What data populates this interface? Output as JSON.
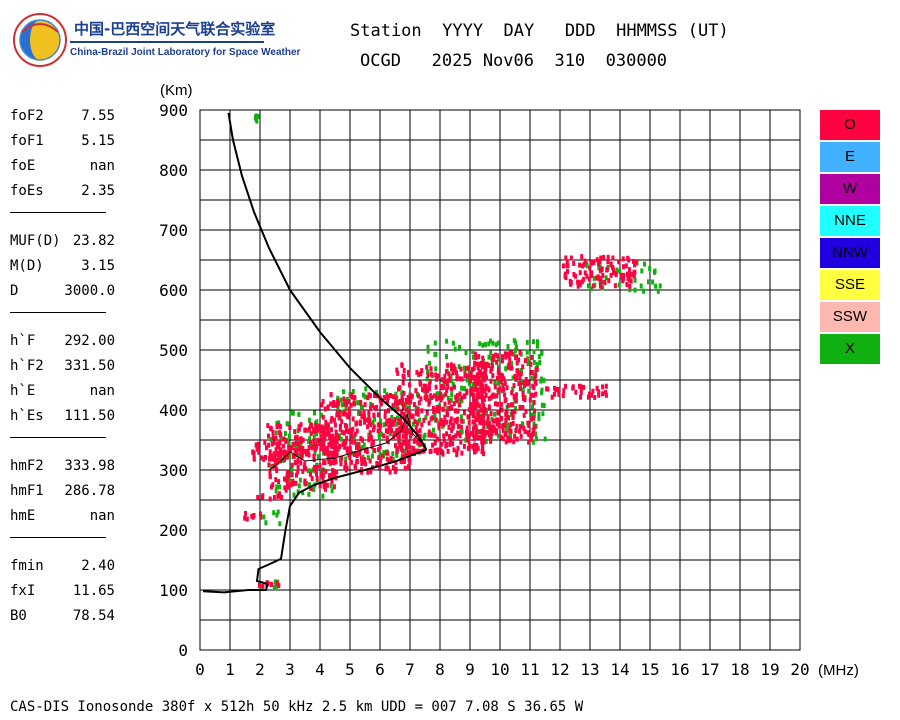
{
  "logo": {
    "title_cn": "中国-巴西空间天气联合实验室",
    "title_en": "China-Brazil Joint Laboratory for Space Weather",
    "icon": "globe-logo-icon"
  },
  "header": {
    "labels": "Station  YYYY  DAY   DDD  HHMMSS (UT)",
    "values": "OCGD   2025 Nov06  310  030000"
  },
  "params": [
    {
      "name": "foF2",
      "value": "7.55"
    },
    {
      "name": "foF1",
      "value": "5.15"
    },
    {
      "name": "foE",
      "value": "nan"
    },
    {
      "name": "foEs",
      "value": "2.35"
    },
    {
      "sep": true
    },
    {
      "name": "MUF(D)",
      "value": "23.82"
    },
    {
      "name": "M(D)",
      "value": "3.15"
    },
    {
      "name": "D",
      "value": "3000.0"
    },
    {
      "sep": true
    },
    {
      "name": "h`F",
      "value": "292.00"
    },
    {
      "name": "h`F2",
      "value": "331.50"
    },
    {
      "name": "h`E",
      "value": "nan"
    },
    {
      "name": "h`Es",
      "value": "111.50"
    },
    {
      "sep": true
    },
    {
      "name": "hmF2",
      "value": "333.98"
    },
    {
      "name": "hmF1",
      "value": "286.78"
    },
    {
      "name": "hmE",
      "value": "nan"
    },
    {
      "sep": true
    },
    {
      "name": "fmin",
      "value": "2.40"
    },
    {
      "name": "fxI",
      "value": "11.65"
    },
    {
      "name": "B0",
      "value": "78.54"
    }
  ],
  "legend": [
    {
      "label": "O",
      "color": "#ff0040"
    },
    {
      "label": "E",
      "color": "#40b0ff"
    },
    {
      "label": "W",
      "color": "#b000a0"
    },
    {
      "label": "NNE",
      "color": "#20ffff"
    },
    {
      "label": "NNW",
      "color": "#2000e0"
    },
    {
      "label": "SSE",
      "color": "#ffff40"
    },
    {
      "label": "SSW",
      "color": "#ffb8b0"
    },
    {
      "label": "X",
      "color": "#10b010"
    }
  ],
  "footer": "CAS-DIS Ionosonde 380f x 512h 50 kHz 2.5 km UDD = 007 7.08 S 36.65 W",
  "chart_data": {
    "type": "scatter",
    "xlabel": "(MHz)",
    "ylabel": "(Km)",
    "xlim": [
      0,
      20
    ],
    "ylim": [
      0,
      900
    ],
    "xticks": [
      "0",
      "1",
      "2",
      "3",
      "4",
      "5",
      "6",
      "7",
      "8",
      "9",
      "10",
      "11",
      "12",
      "13",
      "14",
      "15",
      "16",
      "17",
      "18",
      "19",
      "20"
    ],
    "yticks": [
      "0",
      "100",
      "200",
      "300",
      "400",
      "500",
      "600",
      "700",
      "800",
      "900"
    ],
    "grid": true,
    "colors": {
      "o_mode": "#ff0040",
      "x_mode": "#10b010",
      "profile": "#000000"
    },
    "o_mode_clusters": [
      {
        "x": [
          1.9,
          2.6
        ],
        "y": [
          110,
          118
        ]
      },
      {
        "x": [
          1.4,
          2.0
        ],
        "y": [
          222,
          232
        ]
      },
      {
        "x": [
          1.8,
          3.0
        ],
        "y": [
          255,
          265
        ]
      },
      {
        "x": [
          1.7,
          3.5
        ],
        "y": [
          320,
          350
        ]
      },
      {
        "x": [
          2.2,
          4.5
        ],
        "y": [
          270,
          380
        ]
      },
      {
        "x": [
          4.0,
          7.0
        ],
        "y": [
          300,
          430
        ]
      },
      {
        "x": [
          6.5,
          9.5
        ],
        "y": [
          330,
          480
        ]
      },
      {
        "x": [
          9.0,
          11.2
        ],
        "y": [
          350,
          500
        ]
      },
      {
        "x": [
          11.5,
          13.5
        ],
        "y": [
          425,
          445
        ]
      },
      {
        "x": [
          12.0,
          14.5
        ],
        "y": [
          610,
          660
        ]
      }
    ],
    "x_mode_clusters": [
      {
        "x": [
          1.8,
          2.8
        ],
        "y": [
          108,
          122
        ]
      },
      {
        "x": [
          2.0,
          2.7
        ],
        "y": [
          210,
          240
        ]
      },
      {
        "x": [
          2.3,
          4.5
        ],
        "y": [
          260,
          400
        ]
      },
      {
        "x": [
          4.5,
          7.5
        ],
        "y": [
          320,
          440
        ]
      },
      {
        "x": [
          7.5,
          11.5
        ],
        "y": [
          350,
          520
        ]
      },
      {
        "x": [
          12.8,
          15.3
        ],
        "y": [
          600,
          650
        ]
      },
      {
        "x": [
          1.7,
          1.9
        ],
        "y": [
          885,
          895
        ]
      }
    ],
    "profile_upper": {
      "x": [
        0.95,
        1.1,
        1.4,
        1.8,
        2.3,
        3.0,
        4.0,
        5.0,
        6.0,
        6.8,
        7.3,
        7.55
      ],
      "y": [
        895,
        850,
        790,
        730,
        670,
        600,
        530,
        470,
        420,
        385,
        355,
        334
      ]
    },
    "profile_lower": {
      "x": [
        0.1,
        0.8,
        1.6,
        2.2,
        2.25,
        1.9,
        1.95,
        2.4,
        2.7,
        2.85,
        3.0,
        3.3,
        3.8,
        4.5,
        5.5,
        6.5,
        7.55
      ],
      "y": [
        98,
        96,
        100,
        100,
        110,
        115,
        135,
        145,
        152,
        200,
        240,
        262,
        275,
        287,
        300,
        314,
        334
      ]
    },
    "profile_trace": {
      "x": [
        2.3,
        2.6,
        3.0,
        3.5,
        4.5,
        5.5,
        6.2,
        6.7,
        6.9,
        7.1,
        7.4,
        7.55
      ],
      "y": [
        300,
        310,
        330,
        315,
        320,
        335,
        345,
        365,
        393,
        360,
        345,
        334
      ]
    }
  }
}
